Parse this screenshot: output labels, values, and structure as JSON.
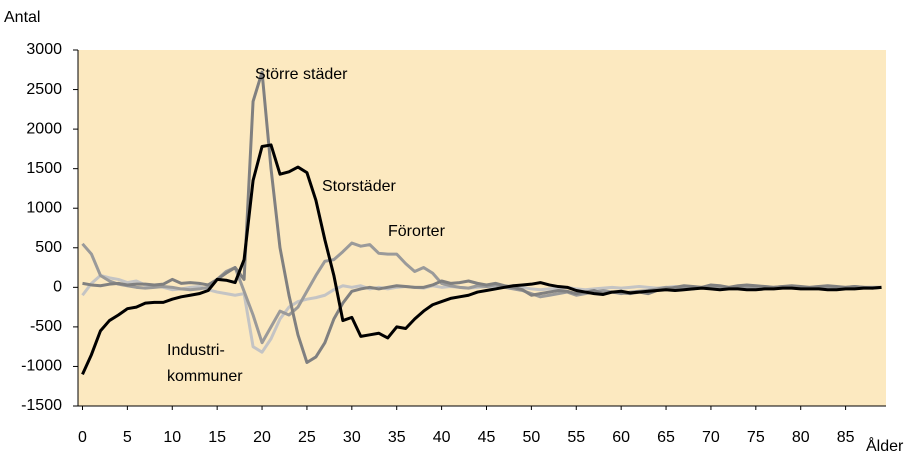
{
  "chart_data": {
    "type": "line",
    "y_label": "Antal",
    "x_label": "Ålder",
    "x": [
      0,
      1,
      2,
      3,
      4,
      5,
      6,
      7,
      8,
      9,
      10,
      11,
      12,
      13,
      14,
      15,
      16,
      17,
      18,
      19,
      20,
      21,
      22,
      23,
      24,
      25,
      26,
      27,
      28,
      29,
      30,
      31,
      32,
      33,
      34,
      35,
      36,
      37,
      38,
      39,
      40,
      41,
      42,
      43,
      44,
      45,
      46,
      47,
      48,
      49,
      50,
      51,
      52,
      53,
      54,
      55,
      56,
      57,
      58,
      59,
      60,
      61,
      62,
      63,
      64,
      65,
      66,
      67,
      68,
      69,
      70,
      71,
      72,
      73,
      74,
      75,
      76,
      77,
      78,
      79,
      80,
      81,
      82,
      83,
      84,
      85,
      86,
      87,
      88,
      89
    ],
    "xlim": [
      -0.5,
      89.5
    ],
    "xticks": [
      0,
      5,
      10,
      15,
      20,
      25,
      30,
      35,
      40,
      45,
      50,
      55,
      60,
      65,
      70,
      75,
      80,
      85
    ],
    "ylim": [
      -1500,
      3000
    ],
    "yticks": [
      -1500,
      -1000,
      -500,
      0,
      500,
      1000,
      1500,
      2000,
      2500,
      3000
    ],
    "series": [
      {
        "name": "Storstäder",
        "color": "#000000",
        "values": [
          -1100,
          -850,
          -550,
          -420,
          -350,
          -270,
          -250,
          -200,
          -190,
          -190,
          -150,
          -120,
          -100,
          -80,
          -40,
          100,
          90,
          60,
          350,
          1350,
          1780,
          1800,
          1430,
          1460,
          1520,
          1450,
          1100,
          600,
          150,
          -420,
          -380,
          -620,
          -600,
          -580,
          -640,
          -500,
          -520,
          -400,
          -300,
          -220,
          -180,
          -140,
          -120,
          -100,
          -60,
          -40,
          -20,
          0,
          20,
          30,
          40,
          60,
          30,
          10,
          0,
          -40,
          -60,
          -80,
          -90,
          -60,
          -50,
          -70,
          -60,
          -50,
          -40,
          -30,
          -40,
          -30,
          -20,
          -10,
          -20,
          -30,
          -20,
          -20,
          -30,
          -30,
          -20,
          -20,
          -10,
          -10,
          -20,
          -20,
          -20,
          -30,
          -30,
          -20,
          -20,
          -10,
          -10,
          0
        ]
      },
      {
        "name": "Större städer",
        "color": "#808080",
        "values": [
          50,
          30,
          20,
          40,
          50,
          30,
          40,
          40,
          30,
          40,
          100,
          50,
          60,
          50,
          30,
          100,
          180,
          250,
          100,
          2350,
          2720,
          1500,
          500,
          -100,
          -600,
          -950,
          -880,
          -700,
          -400,
          -200,
          -50,
          -20,
          0,
          -20,
          0,
          20,
          10,
          0,
          0,
          30,
          80,
          50,
          60,
          80,
          50,
          30,
          50,
          20,
          0,
          -30,
          -100,
          -80,
          -60,
          -40,
          -50,
          -80,
          -60,
          -40,
          -80,
          -60,
          -70,
          -80,
          -60,
          -80,
          -40,
          -20,
          0,
          20,
          10,
          0,
          30,
          20,
          0,
          20,
          30,
          20,
          10,
          0,
          10,
          20,
          10,
          0,
          10,
          20,
          10,
          0,
          10,
          0,
          -10,
          0
        ]
      },
      {
        "name": "Förorter",
        "color": "#9a9a9a",
        "values": [
          550,
          420,
          150,
          80,
          40,
          20,
          0,
          -10,
          0,
          10,
          0,
          -20,
          -30,
          -20,
          0,
          100,
          200,
          250,
          -50,
          -350,
          -700,
          -500,
          -300,
          -350,
          -250,
          -50,
          150,
          330,
          350,
          450,
          560,
          520,
          540,
          430,
          420,
          420,
          300,
          200,
          250,
          180,
          50,
          20,
          0,
          -10,
          20,
          10,
          30,
          0,
          -20,
          -40,
          -80,
          -120,
          -100,
          -80,
          -60,
          -100,
          -80,
          -60,
          -40,
          -60,
          -80,
          -60,
          -50,
          -40,
          -20,
          0,
          -10,
          0,
          -20,
          0,
          10,
          0,
          -10,
          0,
          10,
          0,
          -10,
          0,
          10,
          0,
          0,
          -10,
          0,
          10,
          0,
          0,
          10,
          0,
          0,
          0
        ]
      },
      {
        "name": "Industri-\nkommuner",
        "color": "#c4c4c4",
        "values": [
          -100,
          50,
          150,
          120,
          100,
          60,
          80,
          30,
          20,
          0,
          -30,
          -20,
          0,
          10,
          -30,
          -60,
          -80,
          -100,
          -80,
          -750,
          -820,
          -650,
          -400,
          -250,
          -180,
          -150,
          -130,
          -100,
          -30,
          20,
          0,
          20,
          -20,
          0,
          -20,
          0,
          10,
          0,
          -10,
          20,
          0,
          10,
          0,
          -10,
          0,
          10,
          0,
          10,
          20,
          0,
          -20,
          -30,
          -20,
          -10,
          0,
          -20,
          -30,
          -20,
          -10,
          0,
          -10,
          0,
          10,
          0,
          -10,
          0,
          10,
          0,
          -10,
          0,
          0,
          10,
          0,
          -10,
          0,
          0,
          10,
          0,
          0,
          -10,
          0,
          0,
          10,
          0,
          0,
          -10,
          0,
          0,
          0,
          0
        ]
      }
    ]
  }
}
